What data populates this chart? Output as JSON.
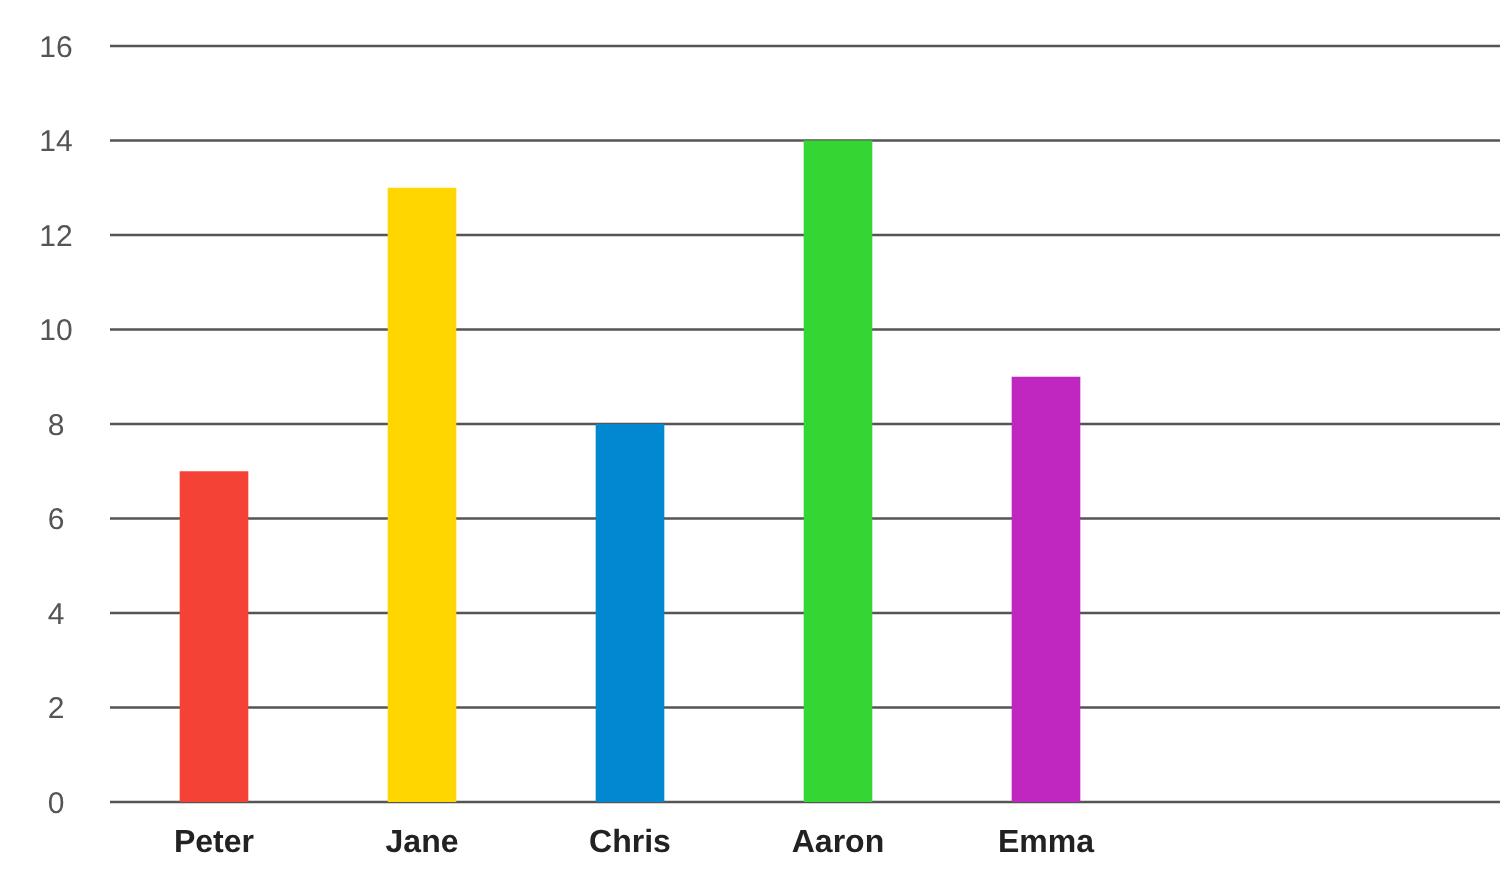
{
  "chart_data": {
    "type": "bar",
    "categories": [
      "Peter",
      "Jane",
      "Chris",
      "Aaron",
      "Emma"
    ],
    "values": [
      7,
      13,
      8,
      14,
      9
    ],
    "colors": [
      "#f44336",
      "#ffd600",
      "#0288d1",
      "#33d633",
      "#c026c0"
    ],
    "ylim": [
      0,
      16
    ],
    "yticks": [
      0,
      2,
      4,
      6,
      8,
      10,
      12,
      14,
      16
    ],
    "grid": "y"
  }
}
